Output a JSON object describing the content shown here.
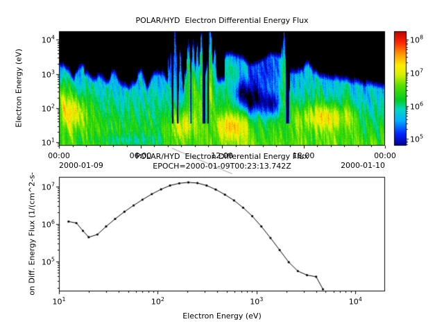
{
  "page": {
    "background": "#ffffff",
    "foreground": "#000000"
  },
  "top_chart": {
    "title": "POLAR/HYD  Electron Differential Energy Flux",
    "ylabel": "Electron Energy (eV)",
    "date_left": "2000-01-09",
    "date_right": "2000-01-10"
  },
  "bottom_chart": {
    "title": "POLAR/HYD  Electron Differential Energy Flux",
    "subtitle": "EPOCH=2000-01-09T00:23:13.742Z",
    "xlabel": "Electron Energy (eV)",
    "ylabel": "on Diff. Energy Flux (1/(cm^2-s-"
  },
  "chart_data": [
    {
      "type": "heatmap",
      "title": "POLAR/HYD  Electron Differential Energy Flux",
      "ylabel": "Electron Energy (eV)",
      "x_ticks": [
        "00:00",
        "06:00",
        "12:00",
        "18:00",
        "00:00"
      ],
      "x_tick_hours": [
        0,
        6,
        12,
        18,
        24
      ],
      "x_range_hours": [
        0,
        24
      ],
      "x_date_left": "2000-01-09",
      "x_date_right": "2000-01-10",
      "y_ticks": [
        "10^1",
        "10^2",
        "10^3",
        "10^4"
      ],
      "y_tick_logs": [
        1,
        2,
        3,
        4
      ],
      "y_log_range": [
        0.9,
        4.25
      ],
      "colorbar": {
        "tick_labels": [
          "10^5",
          "10^6",
          "10^7",
          "10^8"
        ],
        "tick_logs": [
          5,
          6,
          7,
          8
        ],
        "log_range": [
          4.8,
          8.25
        ],
        "stops": [
          [
            0,
            "#000090"
          ],
          [
            0.1,
            "#0020ff"
          ],
          [
            0.22,
            "#00b0ff"
          ],
          [
            0.32,
            "#00d8c0"
          ],
          [
            0.4,
            "#00cc20"
          ],
          [
            0.52,
            "#55e000"
          ],
          [
            0.62,
            "#d8f000"
          ],
          [
            0.7,
            "#ffee00"
          ],
          [
            0.8,
            "#ff9800"
          ],
          [
            0.9,
            "#ff2800"
          ],
          [
            1,
            "#bb0000"
          ]
        ]
      },
      "spectrogram_model": {
        "base_flux_log": 6.55,
        "slope_per_decade": 0.45,
        "boundary_base": 2.75,
        "boundary_wave_amp": 0.3,
        "cutoff_falloff": 5.5,
        "spikes": [
          [
            8.15,
            0.9,
            0.07
          ],
          [
            8.5,
            1.0,
            0.07
          ],
          [
            8.9,
            0.95,
            0.07
          ],
          [
            9.5,
            1.2,
            0.12
          ],
          [
            9.85,
            1.25,
            0.11
          ],
          [
            10.15,
            1.05,
            0.1
          ],
          [
            10.45,
            1.3,
            0.11
          ],
          [
            11.1,
            1.5,
            0.15
          ],
          [
            11.45,
            1.0,
            0.11
          ],
          [
            16.55,
            1.6,
            0.13
          ],
          [
            18.3,
            0.3,
            0.4
          ]
        ],
        "gaps": [
          [
            10.65,
            0.09
          ],
          [
            10.95,
            0.05
          ],
          [
            16.8,
            0.11
          ],
          [
            8.33,
            0.05
          ],
          [
            8.72,
            0.05
          ],
          [
            9.68,
            0.03
          ]
        ],
        "blobs": [
          [
            0.9,
            1.9,
            1.05,
            1.1,
            0.5
          ],
          [
            0.25,
            2.5,
            0.6,
            0.45,
            0.55
          ],
          [
            9.2,
            1.55,
            0.85,
            0.9,
            0.45
          ],
          [
            12.6,
            1.5,
            1.0,
            1.1,
            0.4
          ],
          [
            19.6,
            1.75,
            0.95,
            2.2,
            0.38
          ],
          [
            9.7,
            2.9,
            0.7,
            0.35,
            0.9
          ],
          [
            10.45,
            3.0,
            0.7,
            0.15,
            0.9
          ],
          [
            11.1,
            3.0,
            0.8,
            0.2,
            0.9
          ],
          [
            16.55,
            3.0,
            0.85,
            0.16,
            1.0
          ],
          [
            10.8,
            2.4,
            0.4,
            1.0,
            0.7
          ],
          [
            13.0,
            3.1,
            0.5,
            0.9,
            0.35
          ],
          [
            14.2,
            2.25,
            -1.6,
            0.9,
            0.4
          ],
          [
            15.6,
            2.1,
            -1.25,
            0.55,
            0.33
          ],
          [
            13.35,
            2.45,
            -0.9,
            0.35,
            0.3
          ],
          [
            5.0,
            1.05,
            -0.5,
            3.0,
            0.22
          ],
          [
            23.0,
            2.0,
            -0.35,
            1.2,
            0.9
          ],
          [
            14.3,
            2.95,
            -0.45,
            2.0,
            0.45
          ]
        ]
      }
    },
    {
      "type": "line",
      "title": "POLAR/HYD  Electron Differential Energy Flux",
      "subtitle": "EPOCH=2000-01-09T00:23:13.742Z",
      "xlabel": "Electron Energy (eV)",
      "ylabel": "on Diff. Energy Flux (1/(cm^2-s-",
      "color": "#000000",
      "marker": "dot",
      "x_ticks": [
        "10^1",
        "10^2",
        "10^3",
        "10^4"
      ],
      "x_tick_logs": [
        1,
        2,
        3,
        4
      ],
      "y_ticks": [
        "10^5",
        "10^6",
        "10^7"
      ],
      "y_tick_logs": [
        5,
        6,
        7
      ],
      "xlim_log": [
        1,
        4.3
      ],
      "ylim_log": [
        4.2,
        7.25
      ],
      "x": [
        12.5,
        15,
        17.5,
        20,
        24.5,
        30,
        37,
        46,
        57,
        70,
        87,
        108,
        133,
        165,
        204,
        252,
        312,
        386,
        478,
        591,
        731,
        904,
        1118,
        1383,
        1711,
        2116,
        2617,
        3237,
        4004,
        4700
      ],
      "y": [
        1150000,
        1050000,
        650000,
        440000,
        520000,
        850000,
        1350000,
        2100000,
        3100000,
        4400000,
        6200000,
        8300000,
        10500000,
        12000000,
        12700000,
        12200000,
        10500000,
        8200000,
        6000000,
        4200000,
        2700000,
        1600000,
        850000,
        420000,
        200000,
        95000,
        55000,
        43000,
        39000,
        18000
      ]
    }
  ]
}
